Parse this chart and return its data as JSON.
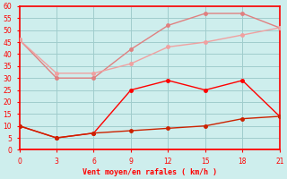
{
  "xlabel": "Vent moyen/en rafales ( km/h )",
  "x": [
    0,
    3,
    6,
    9,
    12,
    15,
    18,
    21
  ],
  "line1_upper": [
    46,
    30,
    30,
    42,
    52,
    57,
    57,
    51
  ],
  "line1_lower": [
    46,
    32,
    32,
    36,
    43,
    45,
    48,
    51
  ],
  "line2_upper": [
    10,
    5,
    7,
    25,
    29,
    25,
    29,
    14
  ],
  "line2_lower": [
    10,
    5,
    7,
    8,
    9,
    10,
    13,
    14
  ],
  "color_pink_dark": "#e08080",
  "color_pink_light": "#f0a0a0",
  "color_red_bright": "#ff0000",
  "color_red_dark": "#cc2200",
  "bg_color": "#ceeeed",
  "grid_color": "#a0cccc",
  "axis_color": "#ff0000",
  "text_color": "#ff0000",
  "ylim": [
    0,
    60
  ],
  "xlim": [
    0,
    21
  ],
  "yticks": [
    0,
    5,
    10,
    15,
    20,
    25,
    30,
    35,
    40,
    45,
    50,
    55,
    60
  ],
  "xticks": [
    0,
    3,
    6,
    9,
    12,
    15,
    18,
    21
  ]
}
